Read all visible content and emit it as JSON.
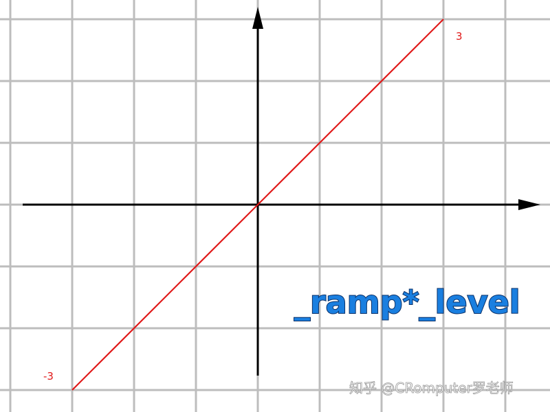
{
  "chart_data": {
    "type": "line",
    "title": "",
    "xlabel": "",
    "ylabel": "",
    "xlim": [
      -3.8,
      4.25
    ],
    "ylim": [
      -3.0,
      3.0
    ],
    "grid": true,
    "series": [
      {
        "x": [
          -3,
          3
        ],
        "y": [
          -3,
          3
        ],
        "color": "#e01818"
      }
    ],
    "point_labels": [
      {
        "text": "3",
        "x": 3,
        "y": 3
      },
      {
        "text": "-3",
        "x": -3,
        "y": -3
      }
    ],
    "annotation": "_ramp*_level",
    "watermark": "知乎 @CRomputer罗老师"
  }
}
